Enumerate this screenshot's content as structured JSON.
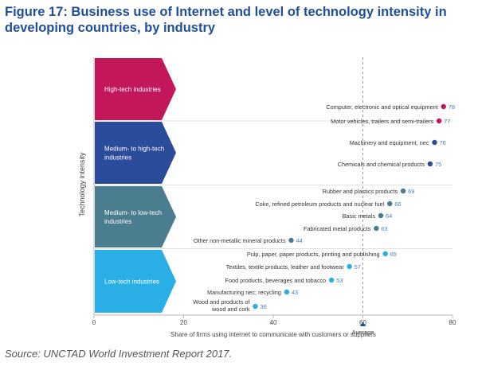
{
  "figure": {
    "title": "Figure 17: Business use of Internet and level of technology intensity in developing countries, by industry",
    "source": "Source: UNCTAD World Investment Report 2017."
  },
  "colors": {
    "high": "#c2185b",
    "medium_high": "#2b4c9a",
    "medium_low": "#4a7d8e",
    "low": "#2aaee6",
    "value_text": "#4b7fc0"
  },
  "chart_data": {
    "type": "scatter",
    "xlabel": "Share of firms using internet to communicate with customers or suppliers",
    "ylabel": "Technology intensity",
    "xlim": [
      0,
      80
    ],
    "xticks": [
      0,
      20,
      40,
      60,
      80
    ],
    "average": {
      "value": 60,
      "label": "Average"
    },
    "groups": [
      {
        "name": "High-tech industries",
        "color": "high"
      },
      {
        "name": "Medium- to high-tech industries",
        "color": "medium_high"
      },
      {
        "name": "Medium- to low-tech industries",
        "color": "medium_low"
      },
      {
        "name": "Low-tech industries",
        "color": "low"
      }
    ],
    "points": [
      {
        "label": "Computer, electronic and optical equipment",
        "value": 78,
        "group": 0
      },
      {
        "label": "Motor vehicles, trailers and semi-trailers",
        "value": 77,
        "group": 0
      },
      {
        "label": "Machinery and equipment, nec",
        "value": 76,
        "group": 1
      },
      {
        "label": "Chemicals and chemical products",
        "value": 75,
        "group": 1
      },
      {
        "label": "Rubber and plastics products",
        "value": 69,
        "group": 2
      },
      {
        "label": "Coke, refined petroleum products and nuclear fuel",
        "value": 66,
        "group": 2
      },
      {
        "label": "Basic metals",
        "value": 64,
        "group": 2
      },
      {
        "label": "Fabricated metal products",
        "value": 63,
        "group": 2
      },
      {
        "label": "Other non-metallic mineral products",
        "value": 44,
        "group": 2
      },
      {
        "label": "Pulp, paper, paper products, printing and publishing",
        "value": 65,
        "group": 3
      },
      {
        "label": "Textiles, textile products, leather and footwear",
        "value": 57,
        "group": 3
      },
      {
        "label": "Food products, beverages and tobacco",
        "value": 53,
        "group": 3
      },
      {
        "label": "Manufacturing nec; recycling",
        "value": 43,
        "group": 3
      },
      {
        "label": "Wood and products of wood and cork",
        "value": 36,
        "group": 3
      }
    ]
  }
}
